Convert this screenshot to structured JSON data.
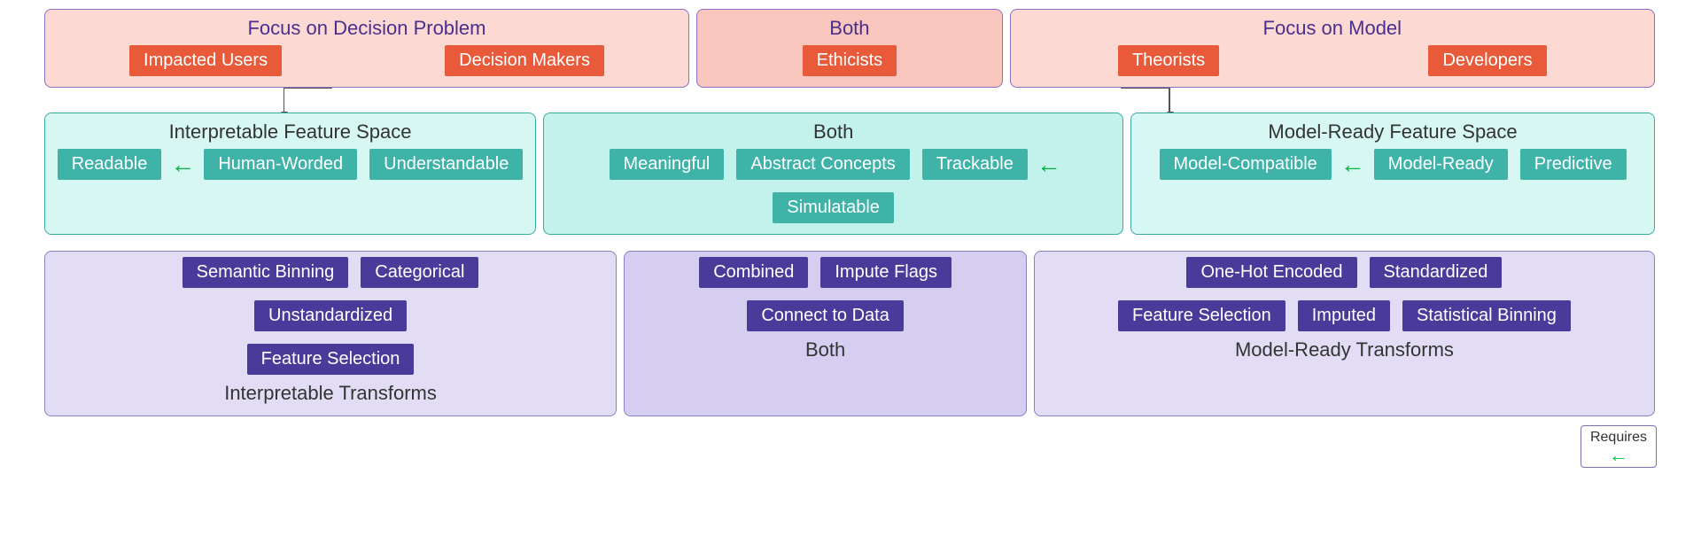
{
  "colors": {
    "row1_panel_bg": "#fcd9d3",
    "row1_panel_bg_mid": "#f9c6bd",
    "row1_border": "#8a6fc4",
    "row1_title": "#4a2f8f",
    "row1_chip_bg": "#e85a3a",
    "row2_panel_bg": "#d7f7f3",
    "row2_panel_bg_mid": "#c3f2ec",
    "row2_border": "#3aa99f",
    "row2_title": "#333333",
    "row2_chip_bg": "#3fb3a8",
    "row3_panel_bg": "#e2ddf4",
    "row3_panel_bg_mid": "#d6cef0",
    "row3_border": "#8a7fc0",
    "row3_title": "#333333",
    "row3_chip_bg": "#4a3a9a",
    "arrow_green": "#00b53a"
  },
  "row1": {
    "left": {
      "title": "Focus on Decision Problem",
      "chips": [
        "Impacted Users",
        "Decision Makers"
      ]
    },
    "mid": {
      "title": "Both",
      "chips": [
        "Ethicists"
      ]
    },
    "right": {
      "title": "Focus on Model",
      "chips": [
        "Theorists",
        "Developers"
      ]
    }
  },
  "row2": {
    "left": {
      "title": "Interpretable Feature Space",
      "chips": [
        "Readable",
        "Human-Worded",
        "Understandable"
      ],
      "req_after_index": 0
    },
    "mid": {
      "title": "Both",
      "chips": [
        "Meaningful",
        "Abstract Concepts",
        "Trackable",
        "Simulatable"
      ],
      "req_after_index": 2
    },
    "right": {
      "title": "Model-Ready Feature Space",
      "chips": [
        "Model-Compatible",
        "Model-Ready",
        "Predictive"
      ],
      "req_after_index": 0
    }
  },
  "row3": {
    "left": {
      "footer": "Interpretable Transforms",
      "chips": [
        "Semantic Binning",
        "Categorical",
        "Unstandardized",
        "Feature Selection"
      ]
    },
    "mid": {
      "footer": "Both",
      "chips": [
        "Combined",
        "Impute Flags",
        "Connect to Data"
      ]
    },
    "right": {
      "footer": "Model-Ready Transforms",
      "chips": [
        "One-Hot Encoded",
        "Standardized",
        "Feature Selection",
        "Imputed",
        "Statistical Binning"
      ]
    }
  },
  "legend": {
    "label": "Requires"
  },
  "layout": {
    "row1_widths": [
      "40%",
      "19%",
      "40%"
    ],
    "row2_widths": [
      "30.5%",
      "36%",
      "32.5%"
    ],
    "row3_widths": [
      "35.5%",
      "25%",
      "38.5%"
    ]
  }
}
